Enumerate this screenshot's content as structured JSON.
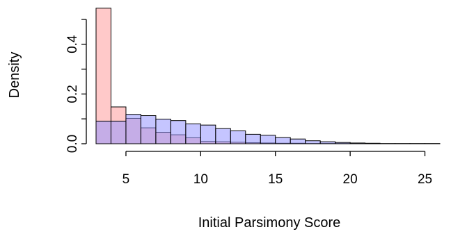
{
  "chart_data": {
    "type": "bar",
    "title": "",
    "xlabel": "Initial Parsimony Score",
    "ylabel": "Density",
    "xlim": [
      3,
      26
    ],
    "ylim": [
      0,
      0.55
    ],
    "xticks": [
      5,
      10,
      15,
      20,
      25
    ],
    "yticks": [
      0.0,
      0.2,
      0.4
    ],
    "ytick_labels": [
      "0.0",
      "0.2",
      "0.4"
    ],
    "grid": false,
    "legend": "none",
    "bin_edges": [
      3,
      4,
      5,
      6,
      7,
      8,
      9,
      10,
      11,
      12,
      13,
      14,
      15,
      16,
      17,
      18,
      19,
      20,
      21,
      22,
      23,
      24,
      25,
      26
    ],
    "series": [
      {
        "color": "#ffc9c9",
        "values": [
          0.545,
          0.148,
          0.102,
          0.064,
          0.046,
          0.036,
          0.024,
          0.009,
          0.008,
          0.006,
          0.004,
          0.003,
          0.002,
          0.002,
          0.001,
          0.001,
          0.001,
          0.0,
          0.0,
          0.0,
          0.0,
          0.0,
          0.0
        ]
      },
      {
        "color": "#9696ff",
        "values": [
          0.091,
          0.091,
          0.118,
          0.113,
          0.099,
          0.093,
          0.08,
          0.075,
          0.061,
          0.052,
          0.038,
          0.034,
          0.025,
          0.019,
          0.012,
          0.008,
          0.005,
          0.003,
          0.002,
          0.001,
          0.001,
          0.001,
          0.001
        ]
      }
    ]
  }
}
